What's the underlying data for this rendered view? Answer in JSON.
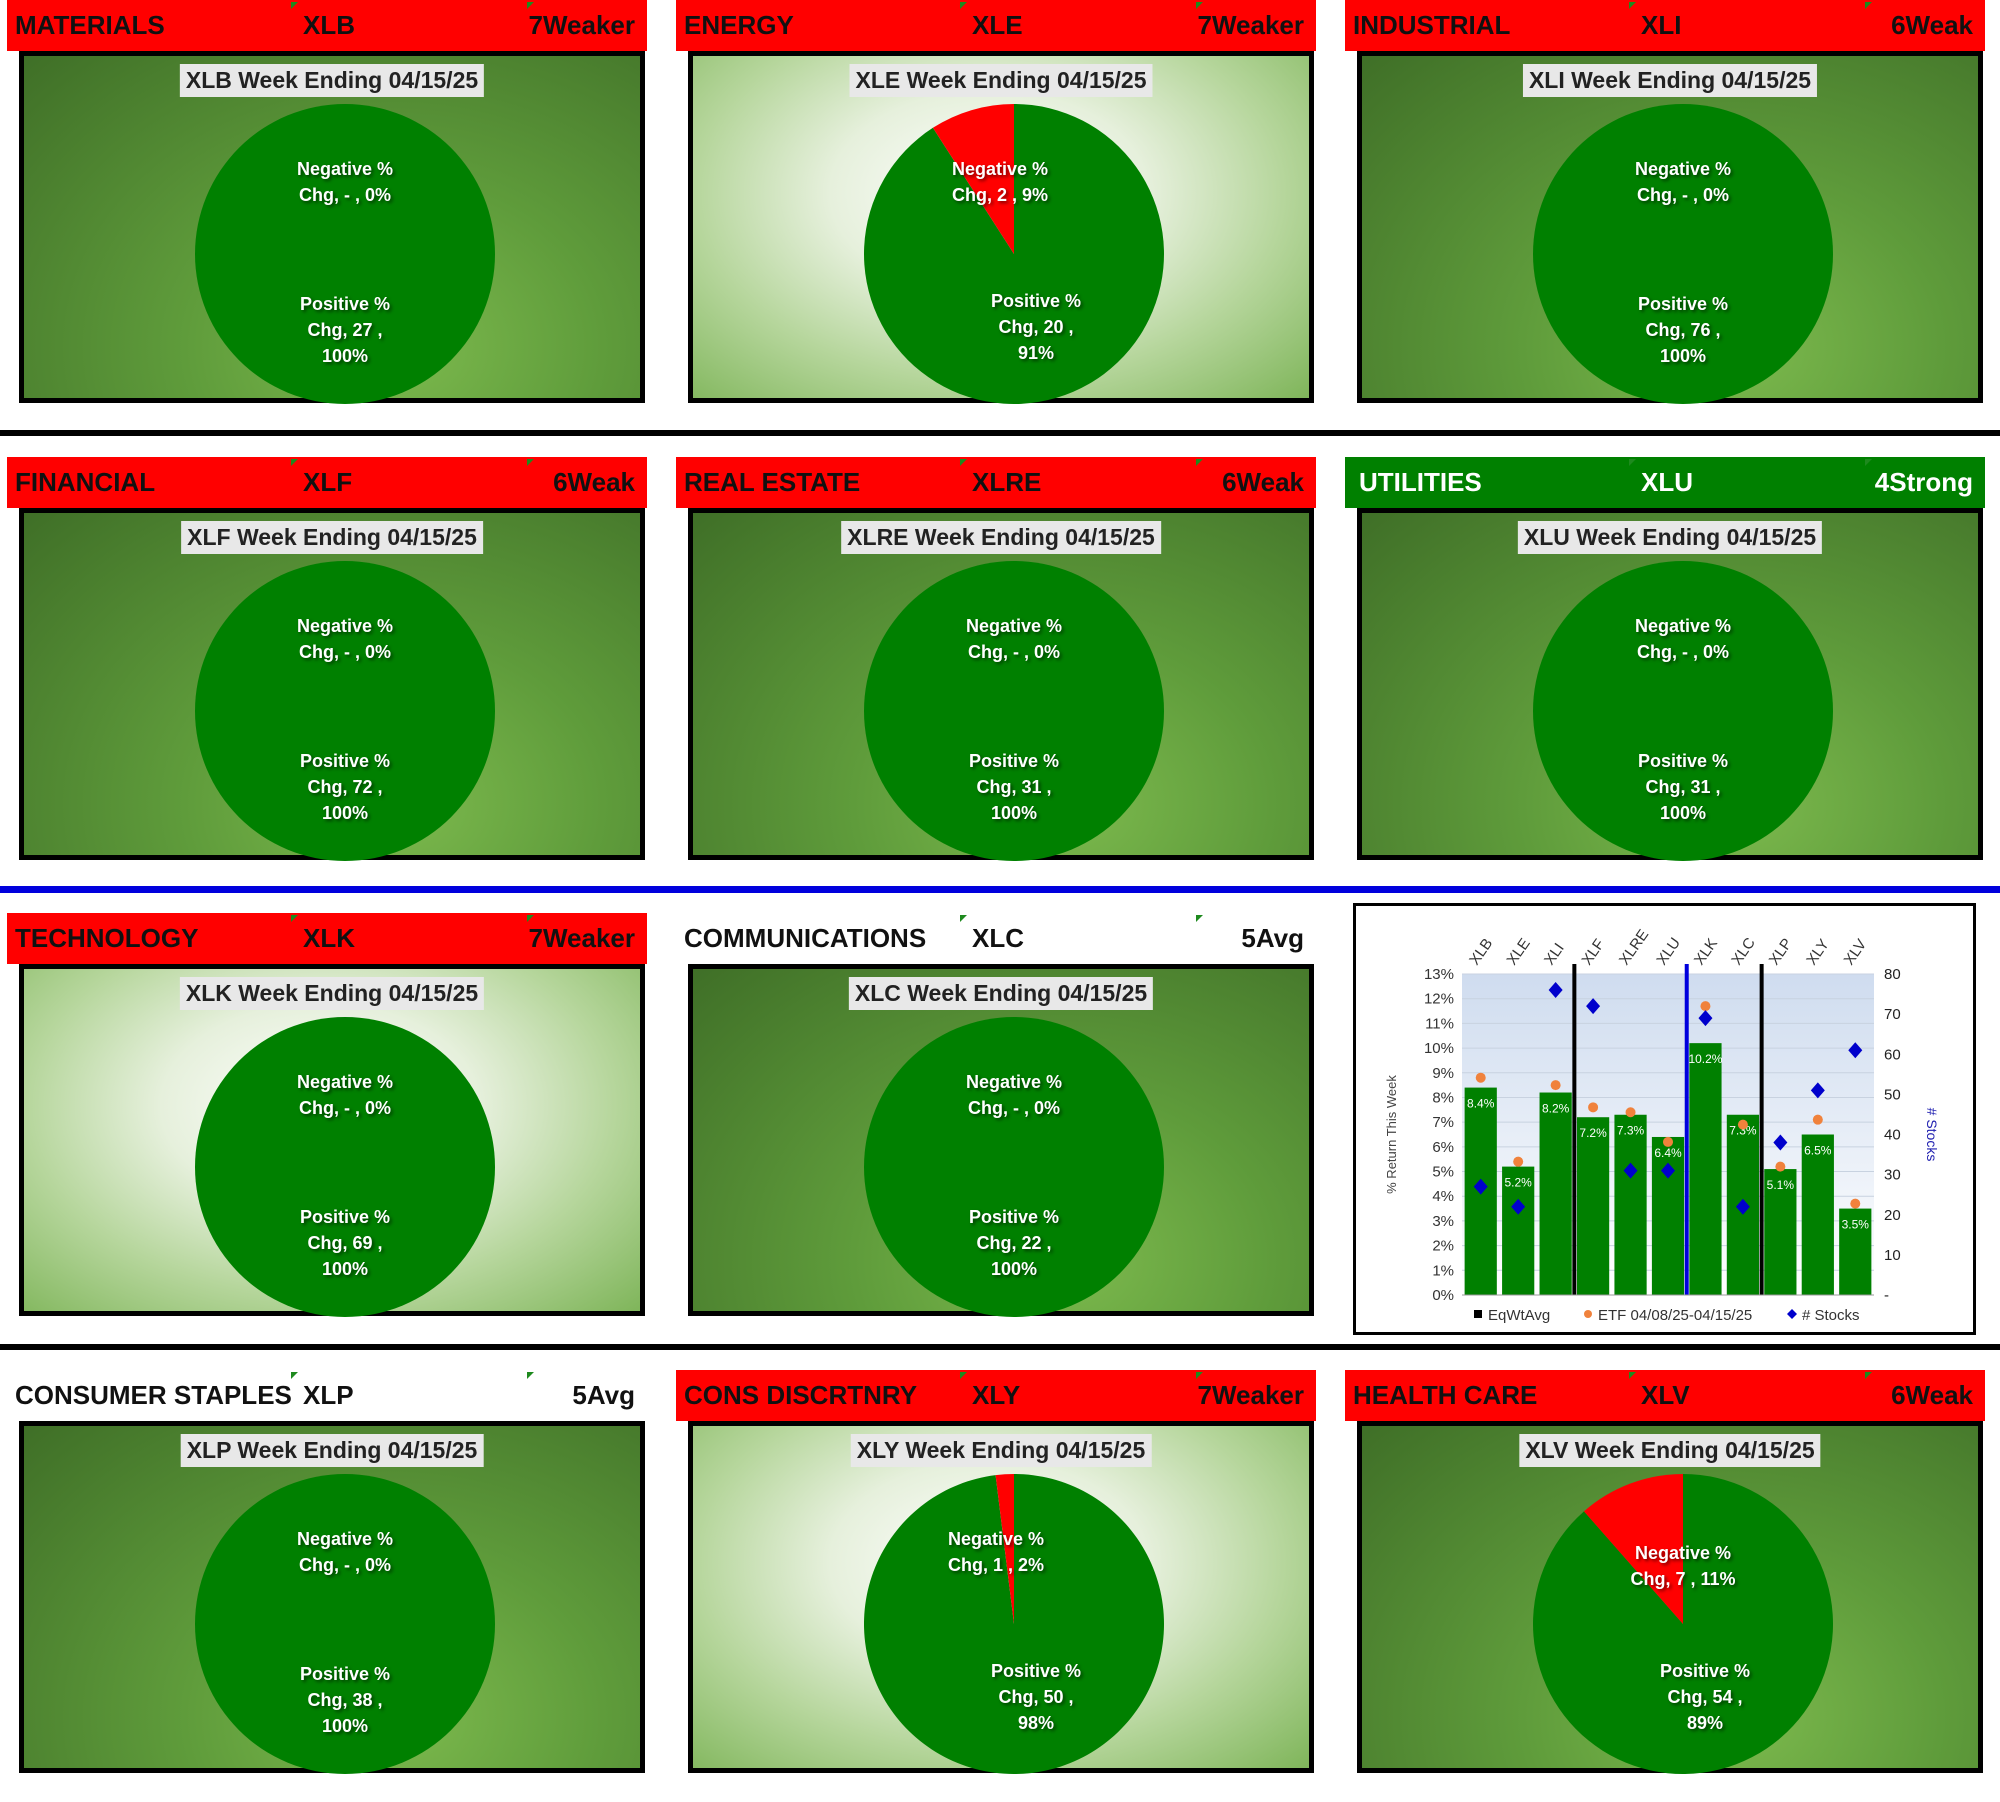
{
  "title_prefix": "Week Ending",
  "date": "04/15/25",
  "colors": {
    "red": "#ff0000",
    "green": "#008000",
    "blue_divider": "#0000dd"
  },
  "panels": [
    {
      "sector": "MATERIALS",
      "ticker": "XLB",
      "rating": "7Weaker",
      "header_style": "red",
      "bg": "dark",
      "title": "XLB Week Ending 04/15/25",
      "neg_line1": "Negative %",
      "neg_line2": "Chg,  -   , 0%",
      "pos_line1": "Positive %",
      "pos_line2": "Chg,  27 ,",
      "pos_line3": "100%",
      "negative": {
        "count": 0,
        "pct": 0
      },
      "positive": {
        "count": 27,
        "pct": 100
      }
    },
    {
      "sector": "ENERGY",
      "ticker": "XLE",
      "rating": "7Weaker",
      "header_style": "red",
      "bg": "light",
      "title": "XLE Week Ending 04/15/25",
      "neg_line1": "Negative %",
      "neg_line2": "Chg,  2 , 9%",
      "pos_line1": "Positive %",
      "pos_line2": "Chg,  20 ,",
      "pos_line3": "91%",
      "negative": {
        "count": 2,
        "pct": 9
      },
      "positive": {
        "count": 20,
        "pct": 91
      }
    },
    {
      "sector": "INDUSTRIAL",
      "ticker": "XLI",
      "rating": "6Weak",
      "header_style": "red",
      "bg": "dark",
      "title": "XLI Week Ending 04/15/25",
      "neg_line1": "Negative %",
      "neg_line2": "Chg,  -   , 0%",
      "pos_line1": "Positive %",
      "pos_line2": "Chg,  76 ,",
      "pos_line3": "100%",
      "negative": {
        "count": 0,
        "pct": 0
      },
      "positive": {
        "count": 76,
        "pct": 100
      }
    },
    {
      "sector": "FINANCIAL",
      "ticker": "XLF",
      "rating": "6Weak",
      "header_style": "red",
      "bg": "dark",
      "title": "XLF Week Ending 04/15/25",
      "neg_line1": "Negative %",
      "neg_line2": "Chg,  -   , 0%",
      "pos_line1": "Positive %",
      "pos_line2": "Chg,  72 ,",
      "pos_line3": "100%",
      "negative": {
        "count": 0,
        "pct": 0
      },
      "positive": {
        "count": 72,
        "pct": 100
      }
    },
    {
      "sector": "REAL ESTATE",
      "ticker": "XLRE",
      "rating": "6Weak",
      "header_style": "red",
      "bg": "dark",
      "title": "XLRE Week Ending 04/15/25",
      "neg_line1": "Negative %",
      "neg_line2": "Chg,  -   , 0%",
      "pos_line1": "Positive %",
      "pos_line2": "Chg,  31 ,",
      "pos_line3": "100%",
      "negative": {
        "count": 0,
        "pct": 0
      },
      "positive": {
        "count": 31,
        "pct": 100
      }
    },
    {
      "sector": "UTILITIES",
      "ticker": "XLU",
      "rating": "4Strong",
      "header_style": "green",
      "bg": "dark",
      "title": "XLU Week Ending 04/15/25",
      "neg_line1": "Negative %",
      "neg_line2": "Chg,  -   , 0%",
      "pos_line1": "Positive %",
      "pos_line2": "Chg,  31 ,",
      "pos_line3": "100%",
      "negative": {
        "count": 0,
        "pct": 0
      },
      "positive": {
        "count": 31,
        "pct": 100
      }
    },
    {
      "sector": "TECHNOLOGY",
      "ticker": "XLK",
      "rating": "7Weaker",
      "header_style": "red",
      "bg": "light",
      "title": "XLK Week Ending 04/15/25",
      "neg_line1": "Negative %",
      "neg_line2": "Chg,  -   , 0%",
      "pos_line1": "Positive %",
      "pos_line2": "Chg,  69 ,",
      "pos_line3": "100%",
      "negative": {
        "count": 0,
        "pct": 0
      },
      "positive": {
        "count": 69,
        "pct": 100
      }
    },
    {
      "sector": "COMMUNICATIONS",
      "ticker": "XLC",
      "rating": "5Avg",
      "header_style": "white",
      "bg": "dark",
      "title": "XLC Week Ending 04/15/25",
      "neg_line1": "Negative %",
      "neg_line2": "Chg,  -   , 0%",
      "pos_line1": "Positive %",
      "pos_line2": "Chg,  22 ,",
      "pos_line3": "100%",
      "negative": {
        "count": 0,
        "pct": 0
      },
      "positive": {
        "count": 22,
        "pct": 100
      }
    },
    {
      "sector": "CONSUMER STAPLES",
      "ticker": "XLP",
      "rating": "5Avg",
      "header_style": "white",
      "bg": "dark",
      "title": "XLP Week Ending 04/15/25",
      "neg_line1": "Negative %",
      "neg_line2": "Chg,  -   , 0%",
      "pos_line1": "Positive %",
      "pos_line2": "Chg,  38 ,",
      "pos_line3": "100%",
      "negative": {
        "count": 0,
        "pct": 0
      },
      "positive": {
        "count": 38,
        "pct": 100
      }
    },
    {
      "sector": "CONS DISCRTNRY",
      "ticker": "XLY",
      "rating": "7Weaker",
      "header_style": "red",
      "bg": "light",
      "title": "XLY Week Ending 04/15/25",
      "neg_line1": "Negative %",
      "neg_line2": "Chg,  1 , 2%",
      "pos_line1": "Positive %",
      "pos_line2": "Chg,  50 ,",
      "pos_line3": "98%",
      "negative": {
        "count": 1,
        "pct": 2
      },
      "positive": {
        "count": 50,
        "pct": 98
      }
    },
    {
      "sector": "HEALTH CARE",
      "ticker": "XLV",
      "rating": "6Weak",
      "header_style": "red",
      "bg": "dark",
      "title": "XLV Week Ending 04/15/25",
      "neg_line1": "Negative %",
      "neg_line2": "Chg,  7 , 11%",
      "pos_line1": "Positive %",
      "pos_line2": "Chg,  54 ,",
      "pos_line3": "89%",
      "negative": {
        "count": 7,
        "pct": 11
      },
      "positive": {
        "count": 54,
        "pct": 89
      }
    }
  ],
  "chart_data": [
    {
      "type": "pie",
      "title": "XLB Week Ending 04/15/25",
      "labels": [
        "Negative % Chg",
        "Positive % Chg"
      ],
      "values": [
        0,
        27
      ],
      "percents": [
        0,
        100
      ]
    },
    {
      "type": "pie",
      "title": "XLE Week Ending 04/15/25",
      "labels": [
        "Negative % Chg",
        "Positive % Chg"
      ],
      "values": [
        2,
        20
      ],
      "percents": [
        9,
        91
      ]
    },
    {
      "type": "pie",
      "title": "XLI Week Ending 04/15/25",
      "labels": [
        "Negative % Chg",
        "Positive % Chg"
      ],
      "values": [
        0,
        76
      ],
      "percents": [
        0,
        100
      ]
    },
    {
      "type": "pie",
      "title": "XLF Week Ending 04/15/25",
      "labels": [
        "Negative % Chg",
        "Positive % Chg"
      ],
      "values": [
        0,
        72
      ],
      "percents": [
        0,
        100
      ]
    },
    {
      "type": "pie",
      "title": "XLRE Week Ending 04/15/25",
      "labels": [
        "Negative % Chg",
        "Positive % Chg"
      ],
      "values": [
        0,
        31
      ],
      "percents": [
        0,
        100
      ]
    },
    {
      "type": "pie",
      "title": "XLU Week Ending 04/15/25",
      "labels": [
        "Negative % Chg",
        "Positive % Chg"
      ],
      "values": [
        0,
        31
      ],
      "percents": [
        0,
        100
      ]
    },
    {
      "type": "pie",
      "title": "XLK Week Ending 04/15/25",
      "labels": [
        "Negative % Chg",
        "Positive % Chg"
      ],
      "values": [
        0,
        69
      ],
      "percents": [
        0,
        100
      ]
    },
    {
      "type": "pie",
      "title": "XLC Week Ending 04/15/25",
      "labels": [
        "Negative % Chg",
        "Positive % Chg"
      ],
      "values": [
        0,
        22
      ],
      "percents": [
        0,
        100
      ]
    },
    {
      "type": "pie",
      "title": "XLP Week Ending 04/15/25",
      "labels": [
        "Negative % Chg",
        "Positive % Chg"
      ],
      "values": [
        0,
        38
      ],
      "percents": [
        0,
        100
      ]
    },
    {
      "type": "pie",
      "title": "XLY Week Ending 04/15/25",
      "labels": [
        "Negative % Chg",
        "Positive % Chg"
      ],
      "values": [
        1,
        50
      ],
      "percents": [
        2,
        98
      ]
    },
    {
      "type": "pie",
      "title": "XLV Week Ending 04/15/25",
      "labels": [
        "Negative % Chg",
        "Positive % Chg"
      ],
      "values": [
        7,
        54
      ],
      "percents": [
        11,
        89
      ]
    },
    {
      "type": "bar",
      "categories": [
        "XLB",
        "XLE",
        "XLI",
        "XLF",
        "XLRE",
        "XLU",
        "XLK",
        "XLC",
        "XLP",
        "XLY",
        "XLV"
      ],
      "series": [
        {
          "name": "EqWtAvg",
          "kind": "bar",
          "values": [
            8.4,
            5.2,
            8.2,
            7.2,
            7.3,
            6.4,
            10.2,
            7.3,
            5.1,
            6.5,
            3.5
          ],
          "labels": [
            "8.4%",
            "5.2%",
            "8.2%",
            "7.2%",
            "7.3%",
            "6.4%",
            "10.2%",
            "7.3%",
            "5.1%",
            "6.5%",
            "3.5%"
          ]
        },
        {
          "name": "ETF 04/08/25-04/15/25",
          "kind": "dot",
          "values": [
            8.8,
            5.4,
            8.5,
            7.6,
            7.4,
            6.2,
            11.7,
            6.9,
            5.2,
            7.1,
            3.7
          ]
        },
        {
          "name": "# Stocks",
          "kind": "diamond",
          "axis": "right",
          "values": [
            27,
            22,
            76,
            72,
            31,
            31,
            69,
            22,
            38,
            51,
            61
          ]
        }
      ],
      "ylabel": "% Return This Week",
      "y2label": "# Stocks",
      "ylim": [
        0,
        13
      ],
      "y2lim": [
        0,
        80
      ],
      "yticks": [
        "0%",
        "1%",
        "2%",
        "3%",
        "4%",
        "5%",
        "6%",
        "7%",
        "8%",
        "9%",
        "10%",
        "11%",
        "12%",
        "13%"
      ],
      "y2ticks": [
        "-",
        "10",
        "20",
        "30",
        "40",
        "50",
        "60",
        "70",
        "80"
      ],
      "legend": [
        "EqWtAvg",
        "ETF 04/08/25-04/15/25",
        "# Stocks"
      ],
      "legend_position": "bottom"
    }
  ]
}
